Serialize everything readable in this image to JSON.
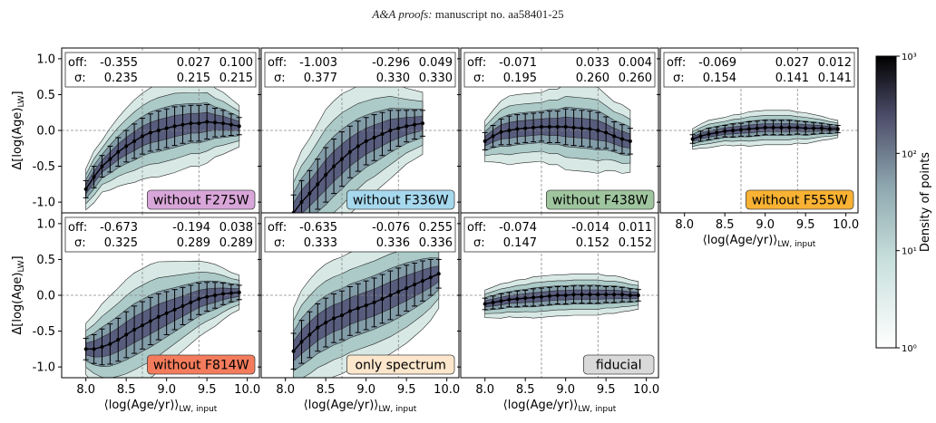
{
  "header": {
    "journal": "A&A proofs:",
    "manuscript": "manuscript no. aa58401-25"
  },
  "axes": {
    "xlabel": "⟨log(Age/yr)⟩",
    "xlabel_sub": "LW, input",
    "ylabel": "Δ[log(Age)",
    "ylabel_sub": "LW",
    "ylabel_close": "]",
    "xticks": [
      "8.0",
      "8.5",
      "9.0",
      "9.5",
      "10.0"
    ],
    "yticks": [
      "-1.0",
      "-0.5",
      "0.0",
      "0.5",
      "1.0"
    ],
    "off_label": "off:",
    "sigma_label": "σ:"
  },
  "colorbar": {
    "label": "Density of points",
    "ticks": [
      "10³",
      "10²",
      "10¹",
      "10⁰"
    ],
    "colors": {
      "low": "#ffffff",
      "mid": "#9ec4c0",
      "high": "#3a3a55",
      "top": "#000000"
    }
  },
  "chart_data": [
    {
      "type": "scatter",
      "label": "without F275W",
      "label_color": "#d9a6d9",
      "off": [
        "-0.355",
        "0.027",
        "0.100"
      ],
      "sigma": [
        "0.235",
        "0.215",
        "0.215"
      ],
      "xlim": [
        7.7,
        10.15
      ],
      "ylim": [
        -1.15,
        1.15
      ],
      "medians": {
        "x": [
          8.0,
          8.1,
          8.2,
          8.3,
          8.4,
          8.5,
          8.6,
          8.7,
          8.8,
          8.9,
          9.0,
          9.1,
          9.2,
          9.3,
          9.4,
          9.5,
          9.6,
          9.7,
          9.8,
          9.9
        ],
        "y": [
          -0.82,
          -0.65,
          -0.5,
          -0.4,
          -0.3,
          -0.22,
          -0.15,
          -0.08,
          -0.03,
          0.0,
          0.03,
          0.06,
          0.08,
          0.1,
          0.1,
          0.12,
          0.11,
          0.1,
          0.08,
          0.06
        ],
        "err": [
          0.12,
          0.15,
          0.15,
          0.18,
          0.2,
          0.22,
          0.24,
          0.25,
          0.26,
          0.27,
          0.27,
          0.27,
          0.26,
          0.25,
          0.25,
          0.24,
          0.2,
          0.18,
          0.15,
          0.12
        ]
      }
    },
    {
      "type": "scatter",
      "label": "without F336W",
      "label_color": "#a6d8ee",
      "off": [
        "-1.003",
        "-0.296",
        "0.049"
      ],
      "sigma": [
        "0.377",
        "0.330",
        "0.330"
      ],
      "xlim": [
        7.7,
        10.15
      ],
      "ylim": [
        -1.15,
        1.15
      ],
      "medians": {
        "x": [
          8.1,
          8.2,
          8.3,
          8.4,
          8.5,
          8.6,
          8.7,
          8.8,
          8.9,
          9.0,
          9.1,
          9.2,
          9.3,
          9.4,
          9.5,
          9.6,
          9.7
        ],
        "y": [
          -1.15,
          -1.0,
          -0.88,
          -0.75,
          -0.62,
          -0.5,
          -0.4,
          -0.3,
          -0.22,
          -0.15,
          -0.1,
          -0.05,
          0.0,
          0.03,
          0.06,
          0.08,
          0.1
        ],
        "err": [
          0.25,
          0.3,
          0.32,
          0.35,
          0.38,
          0.38,
          0.38,
          0.36,
          0.35,
          0.33,
          0.32,
          0.3,
          0.28,
          0.25,
          0.22,
          0.2,
          0.18
        ]
      }
    },
    {
      "type": "scatter",
      "label": "without F438W",
      "label_color": "#9fc59f",
      "off": [
        "-0.071",
        "0.033",
        "0.004"
      ],
      "sigma": [
        "0.195",
        "0.260",
        "0.260"
      ],
      "xlim": [
        7.7,
        10.15
      ],
      "ylim": [
        -1.15,
        1.15
      ],
      "medians": {
        "x": [
          8.0,
          8.1,
          8.2,
          8.3,
          8.4,
          8.5,
          8.6,
          8.7,
          8.8,
          8.9,
          9.0,
          9.1,
          9.2,
          9.3,
          9.4,
          9.5,
          9.6,
          9.7,
          9.8
        ],
        "y": [
          -0.15,
          -0.08,
          -0.02,
          0.0,
          0.02,
          0.03,
          0.04,
          0.05,
          0.05,
          0.05,
          0.05,
          0.04,
          0.03,
          0.02,
          0.0,
          -0.03,
          -0.08,
          -0.12,
          -0.15
        ],
        "err": [
          0.12,
          0.15,
          0.18,
          0.2,
          0.2,
          0.2,
          0.2,
          0.2,
          0.22,
          0.22,
          0.25,
          0.25,
          0.25,
          0.25,
          0.25,
          0.22,
          0.2,
          0.2,
          0.18
        ]
      }
    },
    {
      "type": "scatter",
      "label": "without F555W",
      "label_color": "#f9b233",
      "off": [
        "-0.069",
        "0.027",
        "0.012"
      ],
      "sigma": [
        "0.154",
        "0.141",
        "0.141"
      ],
      "xlim": [
        7.7,
        10.15
      ],
      "ylim": [
        -1.15,
        1.15
      ],
      "medians": {
        "x": [
          8.1,
          8.2,
          8.3,
          8.4,
          8.5,
          8.6,
          8.7,
          8.8,
          8.9,
          9.0,
          9.1,
          9.2,
          9.3,
          9.4,
          9.5,
          9.6,
          9.7,
          9.8,
          9.9
        ],
        "y": [
          -0.12,
          -0.08,
          -0.05,
          -0.03,
          -0.01,
          0.0,
          0.01,
          0.02,
          0.03,
          0.04,
          0.04,
          0.04,
          0.04,
          0.04,
          0.03,
          0.03,
          0.03,
          0.02,
          0.02
        ],
        "err": [
          0.06,
          0.07,
          0.08,
          0.08,
          0.08,
          0.09,
          0.09,
          0.1,
          0.1,
          0.1,
          0.1,
          0.1,
          0.1,
          0.09,
          0.09,
          0.08,
          0.07,
          0.06,
          0.05
        ]
      }
    },
    {
      "type": "scatter",
      "label": "without F814W",
      "label_color": "#f47c5c",
      "off": [
        "-0.673",
        "-0.194",
        "0.038"
      ],
      "sigma": [
        "0.325",
        "0.289",
        "0.289"
      ],
      "xlim": [
        7.7,
        10.15
      ],
      "ylim": [
        -1.15,
        1.15
      ],
      "medians": {
        "x": [
          8.0,
          8.1,
          8.2,
          8.3,
          8.4,
          8.5,
          8.6,
          8.7,
          8.8,
          8.9,
          9.0,
          9.1,
          9.2,
          9.3,
          9.4,
          9.5,
          9.6,
          9.7,
          9.8,
          9.9
        ],
        "y": [
          -0.75,
          -0.75,
          -0.72,
          -0.68,
          -0.62,
          -0.55,
          -0.48,
          -0.42,
          -0.36,
          -0.3,
          -0.25,
          -0.2,
          -0.15,
          -0.1,
          -0.05,
          -0.02,
          0.0,
          0.02,
          0.03,
          0.04
        ],
        "err": [
          0.15,
          0.2,
          0.25,
          0.28,
          0.3,
          0.32,
          0.33,
          0.33,
          0.33,
          0.32,
          0.3,
          0.28,
          0.26,
          0.24,
          0.22,
          0.2,
          0.18,
          0.15,
          0.12,
          0.1
        ]
      }
    },
    {
      "type": "scatter",
      "label": "only spectrum",
      "label_color": "#fde7cc",
      "off": [
        "-0.635",
        "-0.076",
        "0.255"
      ],
      "sigma": [
        "0.333",
        "0.336",
        "0.336"
      ],
      "xlim": [
        7.7,
        10.15
      ],
      "ylim": [
        -1.15,
        1.15
      ],
      "medians": {
        "x": [
          8.1,
          8.2,
          8.3,
          8.4,
          8.5,
          8.6,
          8.7,
          8.8,
          8.9,
          9.0,
          9.1,
          9.2,
          9.3,
          9.4,
          9.5,
          9.6,
          9.7,
          9.8,
          9.9
        ],
        "y": [
          -0.78,
          -0.65,
          -0.55,
          -0.45,
          -0.38,
          -0.32,
          -0.28,
          -0.22,
          -0.18,
          -0.14,
          -0.1,
          -0.05,
          0.0,
          0.05,
          0.1,
          0.15,
          0.2,
          0.25,
          0.3
        ],
        "err": [
          0.25,
          0.3,
          0.32,
          0.33,
          0.34,
          0.34,
          0.34,
          0.34,
          0.34,
          0.34,
          0.34,
          0.34,
          0.34,
          0.33,
          0.32,
          0.3,
          0.28,
          0.25,
          0.2
        ]
      }
    },
    {
      "type": "scatter",
      "label": "fiducial",
      "label_color": "#d9d9d9",
      "off": [
        "-0.074",
        "-0.014",
        "0.011"
      ],
      "sigma": [
        "0.147",
        "0.152",
        "0.152"
      ],
      "xlim": [
        7.7,
        10.15
      ],
      "ylim": [
        -1.15,
        1.15
      ],
      "medians": {
        "x": [
          8.0,
          8.1,
          8.2,
          8.3,
          8.4,
          8.5,
          8.6,
          8.7,
          8.8,
          8.9,
          9.0,
          9.1,
          9.2,
          9.3,
          9.4,
          9.5,
          9.6,
          9.7,
          9.8,
          9.9
        ],
        "y": [
          -0.12,
          -0.1,
          -0.08,
          -0.06,
          -0.05,
          -0.04,
          -0.03,
          -0.02,
          -0.01,
          0.0,
          0.0,
          0.01,
          0.01,
          0.01,
          0.01,
          0.01,
          0.01,
          0.01,
          0.0,
          0.0
        ],
        "err": [
          0.08,
          0.09,
          0.1,
          0.1,
          0.11,
          0.11,
          0.12,
          0.12,
          0.12,
          0.12,
          0.12,
          0.12,
          0.12,
          0.12,
          0.12,
          0.11,
          0.11,
          0.1,
          0.09,
          0.08
        ]
      }
    }
  ]
}
